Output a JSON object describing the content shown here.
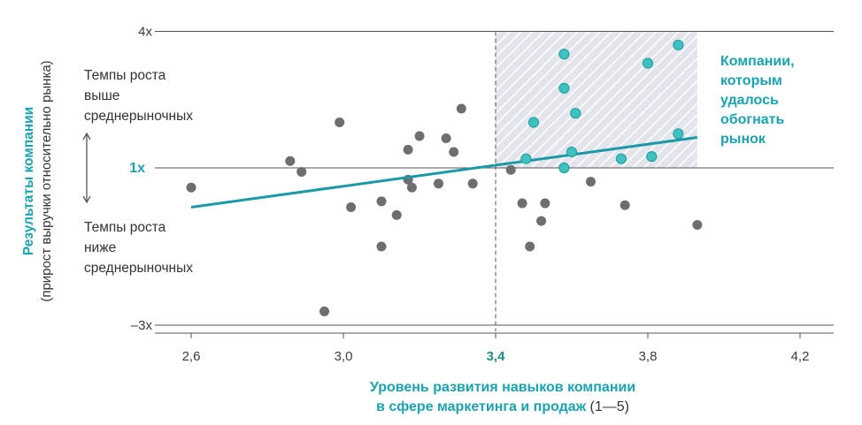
{
  "chart_data": {
    "type": "scatter",
    "xlabel_line1": "Уровень развития навыков компании",
    "xlabel_line2": "в сфере маркетинга и продаж",
    "xlabel_unit": "(1—5)",
    "ylabel": "Результаты компании",
    "ylabel_sub": "(прирост выручки относительно рынка)",
    "x_ticks": [
      "2,6",
      "3,0",
      "3,4",
      "3,8",
      "4,2"
    ],
    "x_tick_values": [
      2.6,
      3.0,
      3.4,
      3.8,
      4.2
    ],
    "x_highlight_tick": "3,4",
    "y_ticks": [
      "4x",
      "1x",
      "–3x"
    ],
    "y_tick_values": [
      4,
      1,
      -3
    ],
    "xlim": [
      2.6,
      4.25
    ],
    "ylim": [
      -3,
      4
    ],
    "grid": "horizontal at 4x, 1x, –3x",
    "threshold_x": 3.4,
    "highlight_region": {
      "x": [
        3.4,
        3.93
      ],
      "y": [
        1,
        4
      ]
    },
    "above_label": [
      "Темпы роста",
      "выше",
      "среднерыночных"
    ],
    "below_label": [
      "Темпы роста",
      "ниже",
      "среднерыночных"
    ],
    "callout": [
      "Компании,",
      "которым",
      "удалось",
      "обогнать",
      "рынок"
    ],
    "trendline": {
      "x": [
        2.6,
        3.93
      ],
      "y": [
        0.0,
        1.67
      ]
    },
    "series": [
      {
        "values_xy": [
          [
            2.6,
            0.5
          ],
          [
            2.86,
            1.15
          ],
          [
            2.89,
            0.9
          ],
          [
            2.95,
            -2.65
          ],
          [
            2.99,
            2.0
          ],
          [
            3.02,
            0.0
          ],
          [
            3.1,
            0.15
          ],
          [
            3.1,
            -1.0
          ],
          [
            3.14,
            -0.2
          ],
          [
            3.17,
            0.7
          ],
          [
            3.17,
            1.4
          ],
          [
            3.18,
            0.5
          ],
          [
            3.2,
            1.7
          ],
          [
            3.25,
            0.6
          ],
          [
            3.27,
            1.65
          ],
          [
            3.29,
            1.35
          ],
          [
            3.31,
            2.3
          ],
          [
            3.34,
            0.6
          ],
          [
            3.44,
            0.95
          ],
          [
            3.47,
            0.1
          ],
          [
            3.49,
            -1.0
          ],
          [
            3.52,
            -0.35
          ],
          [
            3.53,
            0.1
          ],
          [
            3.65,
            0.65
          ],
          [
            3.74,
            0.05
          ],
          [
            3.93,
            -0.45
          ]
        ]
      },
      {
        "values_xy": [
          [
            3.48,
            1.2
          ],
          [
            3.5,
            2.0
          ],
          [
            3.58,
            2.75
          ],
          [
            3.58,
            3.5
          ],
          [
            3.58,
            1.0
          ],
          [
            3.6,
            1.35
          ],
          [
            3.61,
            2.2
          ],
          [
            3.73,
            1.2
          ],
          [
            3.8,
            3.3
          ],
          [
            3.81,
            1.25
          ],
          [
            3.88,
            3.7
          ],
          [
            3.88,
            1.75
          ]
        ]
      }
    ]
  },
  "colors": {
    "grey_point": "#6e6e6e",
    "teal_point": "#3fc1c2",
    "teal_point_stroke": "#23a3a3",
    "trendline": "#1a9aa8",
    "teal_text": "#1aa3b1",
    "axis": "#555555",
    "gridline": "#555555",
    "hatch_bg": "#e4e5ec",
    "hatch_line": "#ffffff"
  }
}
